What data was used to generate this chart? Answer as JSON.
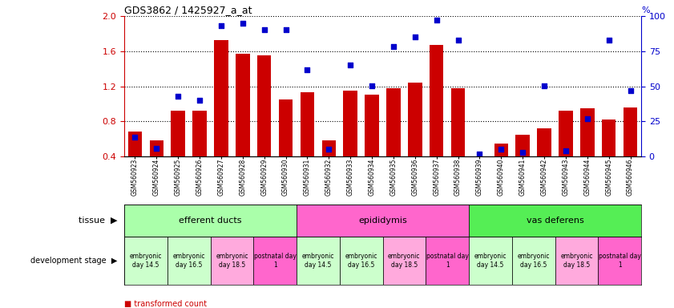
{
  "title": "GDS3862 / 1425927_a_at",
  "samples": [
    "GSM560923",
    "GSM560924",
    "GSM560925",
    "GSM560926",
    "GSM560927",
    "GSM560928",
    "GSM560929",
    "GSM560930",
    "GSM560931",
    "GSM560932",
    "GSM560933",
    "GSM560934",
    "GSM560935",
    "GSM560936",
    "GSM560937",
    "GSM560938",
    "GSM560939",
    "GSM560940",
    "GSM560941",
    "GSM560942",
    "GSM560943",
    "GSM560944",
    "GSM560945",
    "GSM560946"
  ],
  "transformed_count": [
    0.68,
    0.58,
    0.92,
    0.92,
    1.73,
    1.57,
    1.55,
    1.05,
    1.13,
    0.58,
    1.15,
    1.1,
    1.18,
    1.24,
    1.67,
    1.18,
    0.4,
    0.55,
    0.65,
    0.72,
    0.92,
    0.95,
    0.82,
    0.96
  ],
  "percentile_rank": [
    14,
    6,
    43,
    40,
    93,
    95,
    90,
    90,
    62,
    5,
    65,
    50,
    78,
    85,
    97,
    83,
    2,
    5,
    3,
    50,
    4,
    27,
    83,
    47
  ],
  "bar_color": "#cc0000",
  "dot_color": "#0000cc",
  "ylim_left": [
    0.4,
    2.0
  ],
  "ylim_right": [
    0,
    100
  ],
  "yticks_left": [
    0.4,
    0.8,
    1.2,
    1.6,
    2.0
  ],
  "yticks_right": [
    0,
    25,
    50,
    75,
    100
  ],
  "tissue_groups": [
    {
      "label": "efferent ducts",
      "start": 0,
      "end": 8,
      "color": "#aaffaa"
    },
    {
      "label": "epididymis",
      "start": 8,
      "end": 16,
      "color": "#ff66cc"
    },
    {
      "label": "vas deferens",
      "start": 16,
      "end": 24,
      "color": "#55ee55"
    }
  ],
  "dev_stage_groups": [
    {
      "label": "embryonic\nday 14.5",
      "start": 0,
      "end": 2,
      "color": "#ccffcc"
    },
    {
      "label": "embryonic\nday 16.5",
      "start": 2,
      "end": 4,
      "color": "#ccffcc"
    },
    {
      "label": "embryonic\nday 18.5",
      "start": 4,
      "end": 6,
      "color": "#ffaadd"
    },
    {
      "label": "postnatal day\n1",
      "start": 6,
      "end": 8,
      "color": "#ff66cc"
    },
    {
      "label": "embryonic\nday 14.5",
      "start": 8,
      "end": 10,
      "color": "#ccffcc"
    },
    {
      "label": "embryonic\nday 16.5",
      "start": 10,
      "end": 12,
      "color": "#ccffcc"
    },
    {
      "label": "embryonic\nday 18.5",
      "start": 12,
      "end": 14,
      "color": "#ffaadd"
    },
    {
      "label": "postnatal day\n1",
      "start": 14,
      "end": 16,
      "color": "#ff66cc"
    },
    {
      "label": "embryonic\nday 14.5",
      "start": 16,
      "end": 18,
      "color": "#ccffcc"
    },
    {
      "label": "embryonic\nday 16.5",
      "start": 18,
      "end": 20,
      "color": "#ccffcc"
    },
    {
      "label": "embryonic\nday 18.5",
      "start": 20,
      "end": 22,
      "color": "#ffaadd"
    },
    {
      "label": "postnatal day\n1",
      "start": 22,
      "end": 24,
      "color": "#ff66cc"
    }
  ]
}
